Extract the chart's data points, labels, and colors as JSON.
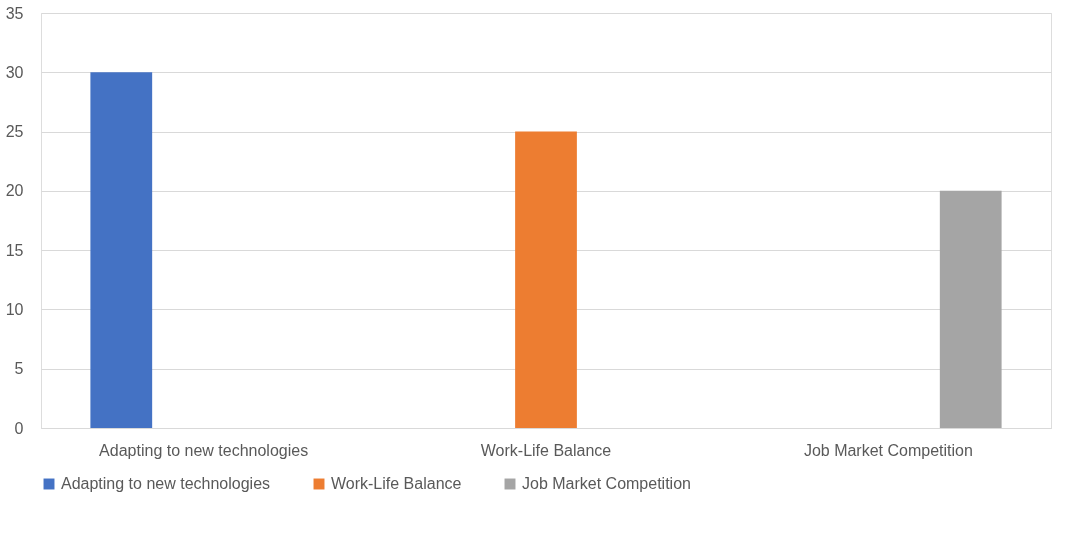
{
  "chart_data": {
    "type": "bar",
    "categories": [
      "Adapting to new technologies",
      "Work-Life Balance",
      "Job Market Competition"
    ],
    "series": [
      {
        "name": "Adapting to new technologies",
        "color": "#4472c4",
        "values": [
          30,
          null,
          null
        ]
      },
      {
        "name": "Work-Life Balance",
        "color": "#ed7d31",
        "values": [
          null,
          25,
          null
        ]
      },
      {
        "name": "Job Market Competition",
        "color": "#a5a5a5",
        "values": [
          null,
          null,
          20
        ]
      }
    ],
    "ylim": [
      0,
      35
    ],
    "yticks": [
      0,
      5,
      10,
      15,
      20,
      25,
      30,
      35
    ],
    "grid": "y",
    "legend": "bottom"
  }
}
